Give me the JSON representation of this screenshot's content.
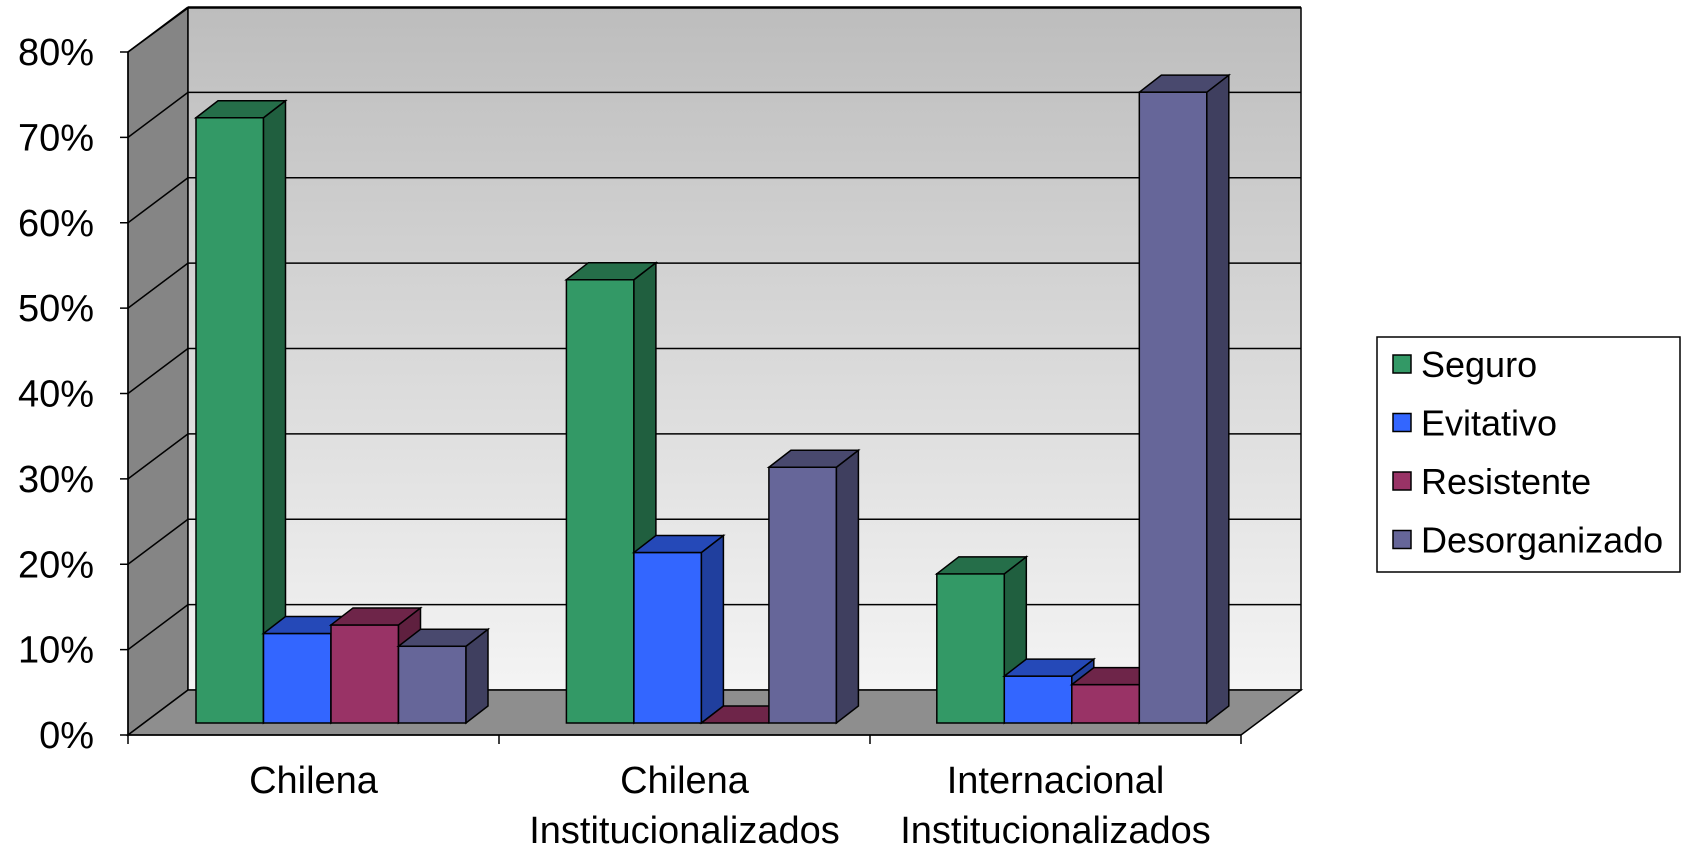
{
  "chart_data": {
    "type": "bar",
    "title": "",
    "xlabel": "",
    "ylabel": "",
    "ylim": [
      0,
      80
    ],
    "y_ticks": [
      "0%",
      "10%",
      "20%",
      "30%",
      "40%",
      "50%",
      "60%",
      "70%",
      "80%"
    ],
    "categories": [
      [
        "Chilena"
      ],
      [
        "Chilena",
        "Institucionalizados"
      ],
      [
        "Internacional",
        "Institucionalizados"
      ]
    ],
    "series": [
      {
        "name": "Seguro",
        "values": [
          71,
          52,
          17.5
        ],
        "color": "#339966"
      },
      {
        "name": "Evitativo",
        "values": [
          10.5,
          20,
          5.5
        ],
        "color": "#3366ff"
      },
      {
        "name": "Resistente",
        "values": [
          11.5,
          0,
          4.5
        ],
        "color": "#993366"
      },
      {
        "name": "Desorganizado",
        "values": [
          9,
          30,
          74
        ],
        "color": "#666699"
      }
    ],
    "grid": true,
    "style": "3d",
    "legend": "right"
  }
}
